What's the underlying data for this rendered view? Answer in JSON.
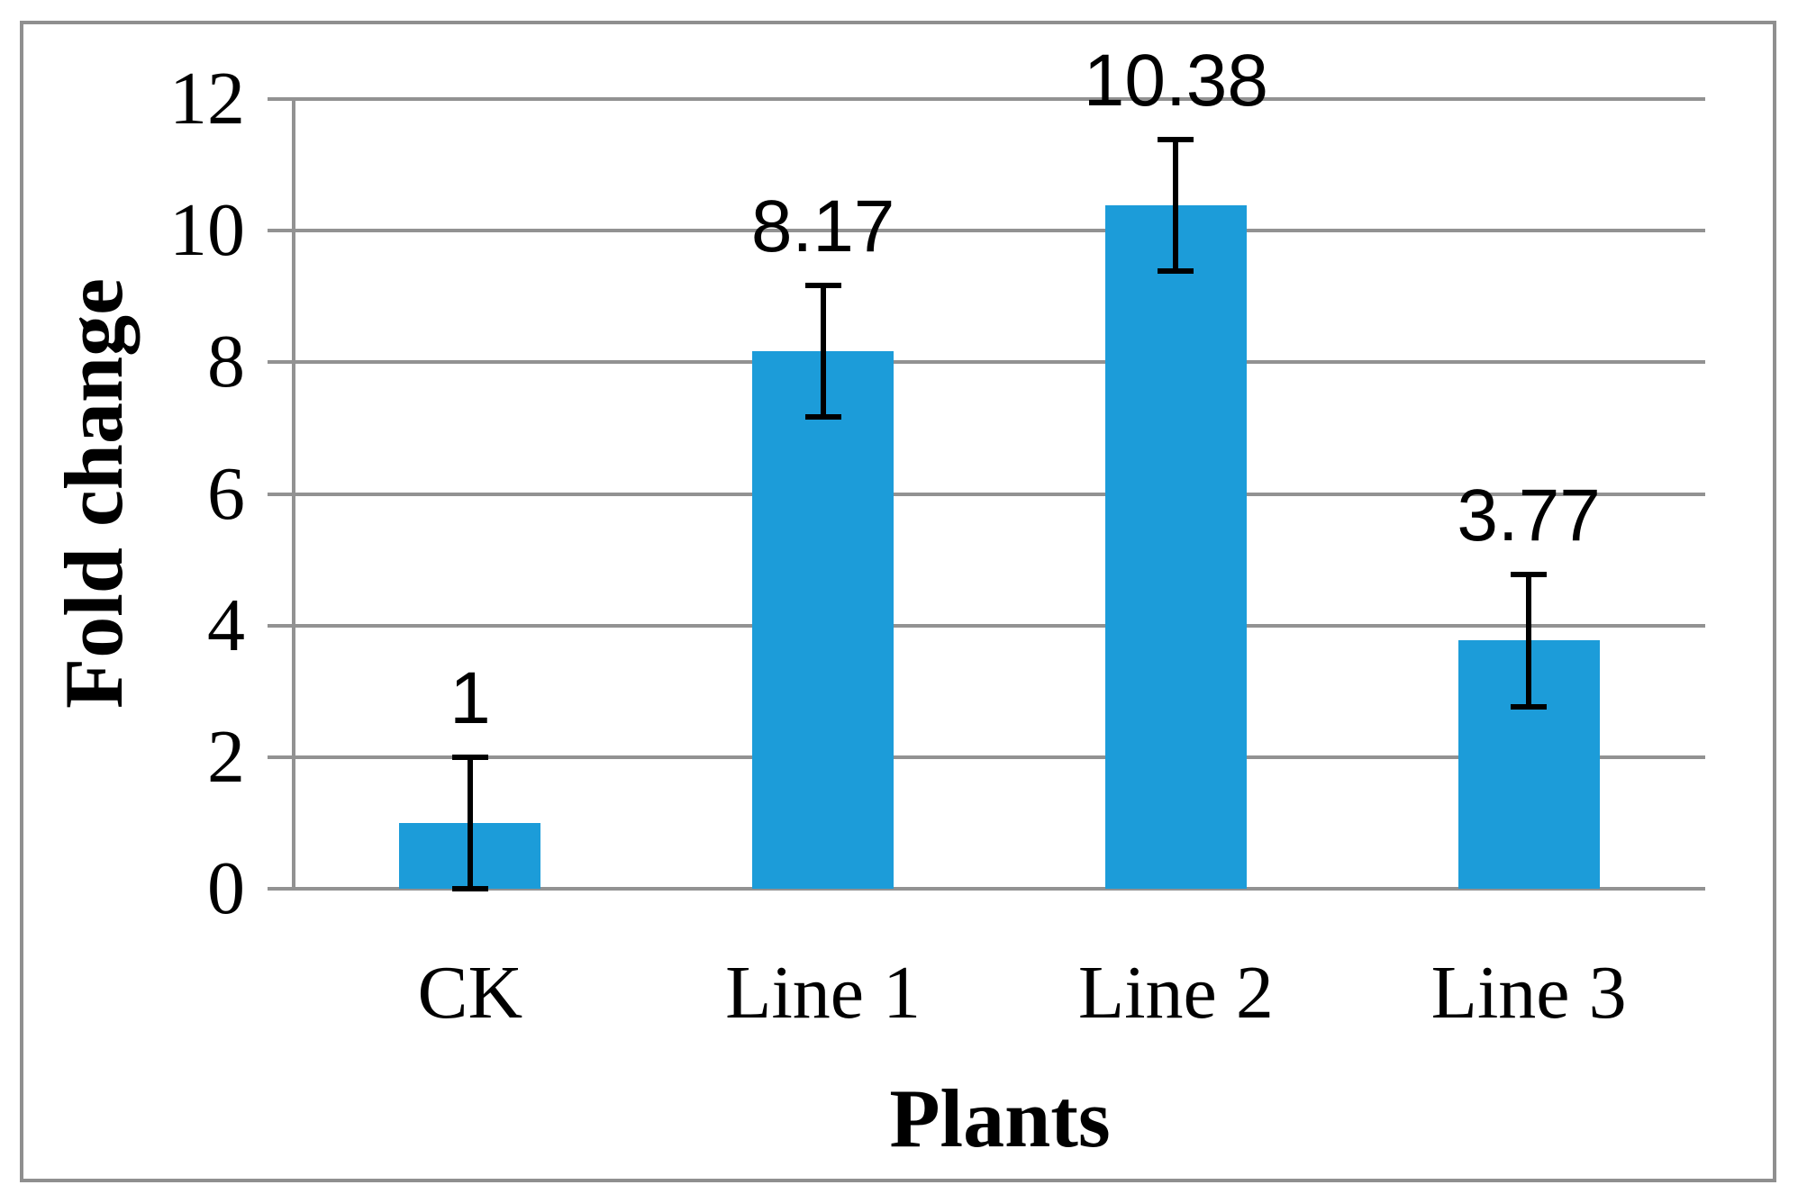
{
  "chart_data": {
    "type": "bar",
    "categories": [
      "CK",
      "Line 1",
      "Line 2",
      "Line 3"
    ],
    "values": [
      1,
      8.17,
      10.38,
      3.77
    ],
    "data_labels": [
      "1",
      "8.17",
      "10.38",
      "3.77"
    ],
    "error_bars": [
      1.0,
      1.0,
      1.0,
      1.0
    ],
    "title": "",
    "xlabel": "Plants",
    "ylabel": "Fold change",
    "ylim": [
      0,
      12
    ],
    "yticks": [
      0,
      2,
      4,
      6,
      8,
      10,
      12
    ],
    "grid": true,
    "legend": false,
    "bar_color": "#1C9CD9",
    "gridline_color": "#929292",
    "axis_color": "#929292",
    "frame_border_color": "#8F8F8F",
    "text_color": "#000000",
    "error_bar_color": "#000000"
  }
}
